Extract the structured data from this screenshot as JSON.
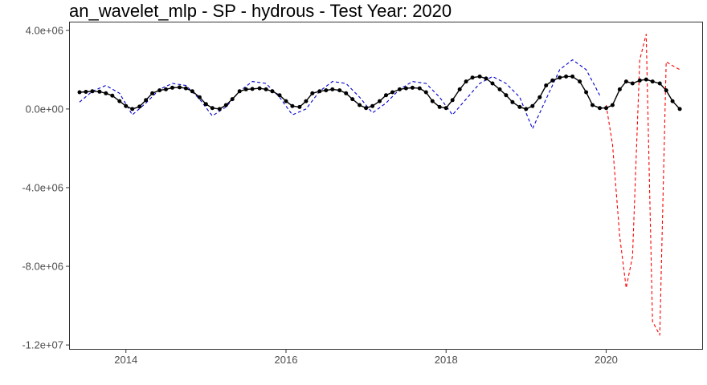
{
  "chart_data": {
    "type": "line",
    "title": "an_wavelet_mlp - SP - hydrous - Test Year: 2020",
    "xlabel": "",
    "ylabel": "",
    "xlim": [
      2013.3,
      2021.2
    ],
    "ylim": [
      -12200000,
      4400000
    ],
    "x_ticks": [
      2014,
      2016,
      2018,
      2020
    ],
    "x_tick_labels": [
      "2014",
      "2016",
      "2018",
      "2020"
    ],
    "y_ticks": [
      4000000,
      0,
      -4000000,
      -8000000,
      -12000000
    ],
    "y_tick_labels": [
      "4.0e+06",
      "0.0e+00",
      "-4.0e+06",
      "-8.0e+06",
      "-1.2e+07"
    ],
    "grid": false,
    "legend": "none",
    "series": [
      {
        "color": "#000000",
        "style": "solid-with-points",
        "x": [
          2013.42,
          2013.5,
          2013.58,
          2013.67,
          2013.75,
          2013.83,
          2013.92,
          2014.0,
          2014.08,
          2014.17,
          2014.25,
          2014.33,
          2014.42,
          2014.5,
          2014.58,
          2014.67,
          2014.75,
          2014.83,
          2014.92,
          2015.0,
          2015.08,
          2015.17,
          2015.25,
          2015.33,
          2015.42,
          2015.5,
          2015.58,
          2015.67,
          2015.75,
          2015.83,
          2015.92,
          2016.0,
          2016.08,
          2016.17,
          2016.25,
          2016.33,
          2016.42,
          2016.5,
          2016.58,
          2016.67,
          2016.75,
          2016.83,
          2016.92,
          2017.0,
          2017.08,
          2017.17,
          2017.25,
          2017.33,
          2017.42,
          2017.5,
          2017.58,
          2017.67,
          2017.75,
          2017.83,
          2017.92,
          2018.0,
          2018.08,
          2018.17,
          2018.25,
          2018.33,
          2018.42,
          2018.5,
          2018.58,
          2018.67,
          2018.75,
          2018.83,
          2018.92,
          2019.0,
          2019.08,
          2019.17,
          2019.25,
          2019.33,
          2019.42,
          2019.5,
          2019.58,
          2019.67,
          2019.75,
          2019.83,
          2019.92,
          2020.0,
          2020.08,
          2020.17,
          2020.25,
          2020.33,
          2020.42,
          2020.5,
          2020.58,
          2020.67,
          2020.75,
          2020.83,
          2020.92
        ],
        "y": [
          850000,
          870000,
          900000,
          880000,
          800000,
          680000,
          400000,
          150000,
          0,
          120000,
          450000,
          800000,
          950000,
          1000000,
          1080000,
          1100000,
          1050000,
          900000,
          600000,
          250000,
          50000,
          0,
          200000,
          500000,
          900000,
          1000000,
          1020000,
          1050000,
          1000000,
          900000,
          700000,
          400000,
          150000,
          100000,
          400000,
          800000,
          900000,
          950000,
          1000000,
          950000,
          800000,
          500000,
          200000,
          50000,
          150000,
          400000,
          700000,
          850000,
          1000000,
          1050000,
          1080000,
          1050000,
          850000,
          400000,
          100000,
          50000,
          450000,
          1000000,
          1400000,
          1600000,
          1650000,
          1550000,
          1300000,
          1000000,
          700000,
          350000,
          100000,
          0,
          150000,
          600000,
          1200000,
          1450000,
          1600000,
          1650000,
          1650000,
          1400000,
          850000,
          200000,
          50000,
          50000,
          200000,
          1000000,
          1400000,
          1300000,
          1450000,
          1500000,
          1400000,
          1300000,
          950000,
          400000,
          0
        ]
      },
      {
        "color": "#0000cc",
        "style": "dashed",
        "x": [
          2013.42,
          2013.58,
          2013.75,
          2013.92,
          2014.08,
          2014.25,
          2014.42,
          2014.58,
          2014.75,
          2014.92,
          2015.08,
          2015.25,
          2015.42,
          2015.58,
          2015.75,
          2015.92,
          2016.08,
          2016.25,
          2016.42,
          2016.58,
          2016.75,
          2016.92,
          2017.08,
          2017.25,
          2017.42,
          2017.58,
          2017.75,
          2017.92,
          2018.08,
          2018.25,
          2018.42,
          2018.58,
          2018.75,
          2018.92,
          2019.08,
          2019.25,
          2019.42,
          2019.58,
          2019.75,
          2019.92
        ],
        "y": [
          350000,
          900000,
          1200000,
          800000,
          -300000,
          300000,
          1000000,
          1300000,
          1200000,
          500000,
          -350000,
          100000,
          900000,
          1400000,
          1300000,
          600000,
          -300000,
          0,
          900000,
          1400000,
          1300000,
          600000,
          -200000,
          300000,
          1000000,
          1400000,
          1300000,
          600000,
          -300000,
          500000,
          1300000,
          1650000,
          1300000,
          600000,
          -1000000,
          500000,
          2000000,
          2500000,
          2000000,
          700000
        ]
      },
      {
        "color": "#ff0000",
        "style": "dashed",
        "x": [
          2020.0,
          2020.08,
          2020.17,
          2020.25,
          2020.33,
          2020.42,
          2020.5,
          2020.58,
          2020.67,
          2020.75,
          2020.83,
          2020.92
        ],
        "y": [
          200000,
          -1800000,
          -6500000,
          -9100000,
          -7500000,
          2500000,
          3800000,
          -10800000,
          -11500000,
          2400000,
          2200000,
          2000000
        ]
      }
    ]
  }
}
